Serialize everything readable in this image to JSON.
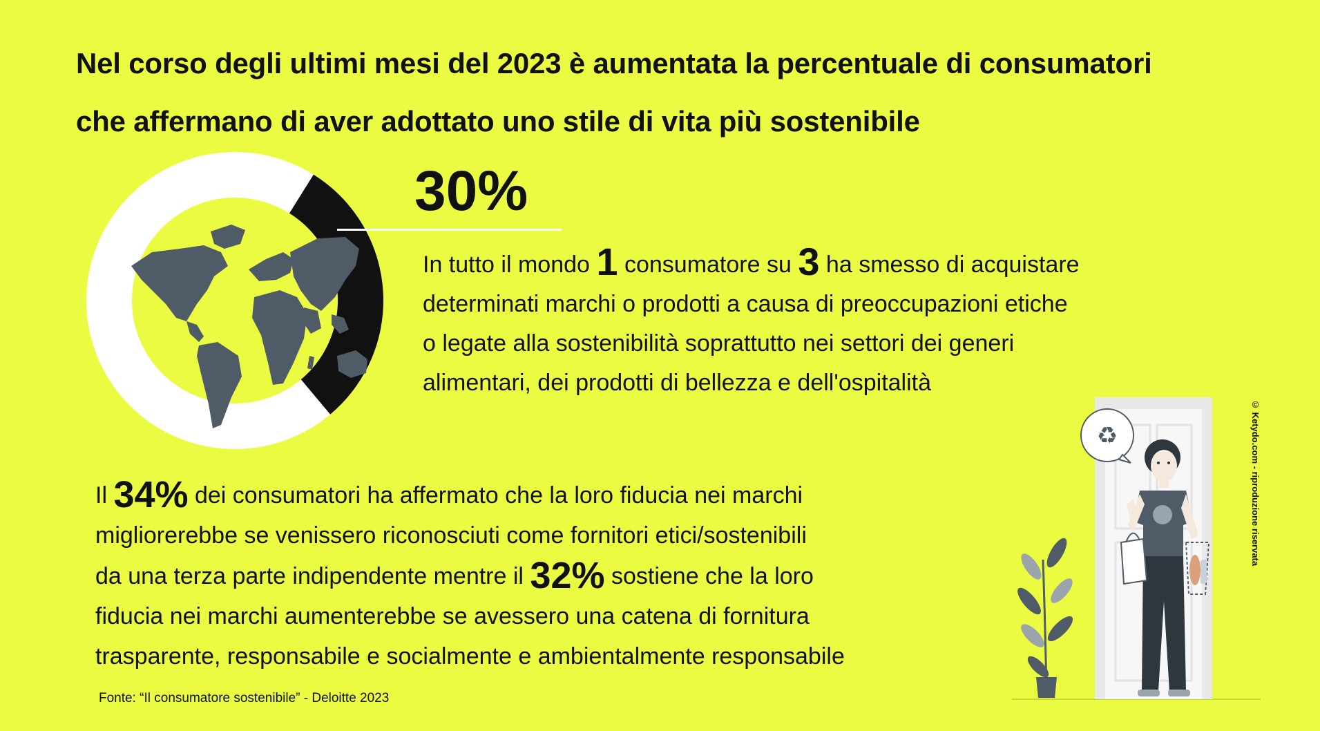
{
  "title": {
    "line1": "Nel corso degli ultimi mesi del 2023 è aumentata la percentuale di consumatori",
    "line2": "che affermano di aver adottato uno stile di vita più sostenibile"
  },
  "stat1": {
    "value": "30%",
    "fraction": 0.3
  },
  "paragraph1": {
    "l1_a": "In tutto il mondo ",
    "l1_num1": "1",
    "l1_b": " consumatore su ",
    "l1_num2": "3",
    "l1_c": " ha smesso di acquistare",
    "l2": "determinati marchi o prodotti a causa di preoccupazioni etiche",
    "l3": "o legate alla sostenibilità soprattutto nei settori dei generi",
    "l4": "alimentari, dei prodotti di bellezza e dell'ospitalità"
  },
  "paragraph2": {
    "l1_a": "Il ",
    "l1_num": "34%",
    "l1_b": " dei consumatori ha affermato che la loro fiducia nei marchi",
    "l2": "migliorerebbe se venissero riconosciuti come fornitori etici/sostenibili",
    "l3_a": "da una terza parte indipendente mentre il ",
    "l3_num": "32%",
    "l3_b": " sostiene che la loro",
    "l4": "fiducia nei marchi aumenterebbe se avessero una catena di fornitura",
    "l5": "trasparente, responsabile e socialmente e ambientalmente responsabile"
  },
  "source": "Fonte: “Il consumatore sostenibile” - Deloitte 2023",
  "credit": "© Ketydo.com - riproduzione riservata",
  "icons": {
    "globe": "world-map-icon",
    "recycle": "recycle-icon",
    "illustration": "person-with-reusable-bags"
  },
  "colors": {
    "background": "#ebfb41",
    "donut_remaining": "#ffffff",
    "donut_highlight": "#111111",
    "map": "#4f5b66"
  }
}
